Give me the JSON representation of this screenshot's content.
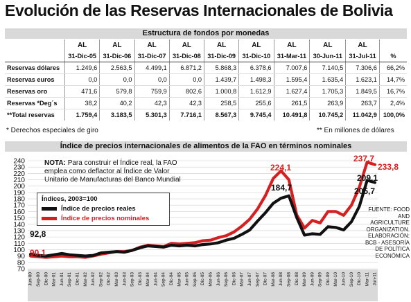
{
  "title": "Evolución de las Reservas Internacionales de Bolivia",
  "table": {
    "section_title": "Estructura de fondos por monedas",
    "header_top": [
      "AL",
      "AL",
      "AL",
      "AL",
      "AL",
      "AL",
      "AL",
      "AL",
      "AL"
    ],
    "header_dates": [
      "31-Dic-05",
      "31-Dic-06",
      "31-Dic-07",
      "31-Dic-08",
      "31-Dic-09",
      "31-Dic-10",
      "31-Mar-11",
      "30-Jun-11",
      "31-Jul-11",
      "%"
    ],
    "rows": [
      {
        "label": "Reservas dólares",
        "values": [
          "1.249,6",
          "2.563,5",
          "4.499,1",
          "6.871,2",
          "5.868,3",
          "6.378,6",
          "7.007,6",
          "7.140,5",
          "7.306,6",
          "66,2%"
        ]
      },
      {
        "label": "Reservas euros",
        "values": [
          "0,0",
          "0,0",
          "0,0",
          "0,0",
          "1.439,7",
          "1.498,3",
          "1.595,4",
          "1.635,4",
          "1.623,1",
          "14,7%"
        ]
      },
      {
        "label": "Reservas oro",
        "values": [
          "471,6",
          "579,8",
          "759,9",
          "802,6",
          "1.000,8",
          "1.612,9",
          "1.627,4",
          "1.705,3",
          "1.849,5",
          "16,7%"
        ]
      },
      {
        "label": "Reservas *Deg´s",
        "values": [
          "38,2",
          "40,2",
          "42,3",
          "42,3",
          "258,5",
          "255,6",
          "261,5",
          "263,9",
          "263,7",
          "2,4%"
        ]
      }
    ],
    "total": {
      "label": "**Total reservas",
      "values": [
        "1.759,4",
        "3.183,5",
        "5.301,3",
        "7.716,1",
        "8.567,3",
        "9.745,4",
        "10.491,8",
        "10.745,2",
        "11.042,9",
        "100,0%"
      ]
    },
    "footnote_left": "* Derechos especiales de giro",
    "footnote_right": "** En millones de dólares"
  },
  "chart_section_title": "Índice de precios internacionales de alimentos de la FAO en términos nominales",
  "note": {
    "lead": "NOTA:",
    "text": "Para construir el Índice real, la FAO emplea como deflactor al Índice de Valor Unitario de Manufacturas del Banco Mundial"
  },
  "legend": {
    "title": "Índices, 2003=100",
    "real": "Índice de precios reales",
    "nominal": "Índice de precios nominales"
  },
  "source": "FUENTE: FOOD AND AGRICULTURE ORGANIZATION. ELABORACIÓN: BCB - ASESORÍA DE POLÍTICA ECONÓMICA",
  "colors": {
    "real": "#111111",
    "nominal": "#d42020",
    "band": "#d9d9d9"
  },
  "chart_data": {
    "type": "line",
    "x": [
      "Jun-00",
      "Sep-00",
      "Dic-00",
      "Mar-01",
      "Jun-01",
      "Sep-01",
      "Dic-01",
      "Mar-02",
      "Jun-02",
      "Sep-02",
      "Dic-02",
      "Mar-03",
      "Jun-03",
      "Sep-03",
      "Dic-03",
      "Mar-04",
      "Jun-04",
      "Sep-04",
      "Dic-04",
      "Mar-05",
      "Jun-05",
      "Sep-05",
      "Dic-05",
      "Mar-06",
      "Jun-06",
      "Sep-06",
      "Dic-06",
      "Mar-07",
      "Jun-07",
      "Sep-07",
      "Dic-07",
      "Mar-08",
      "Jun-08",
      "Sep-08",
      "Dic-08",
      "Mar-09",
      "Jun-09",
      "Sep-09",
      "Dic-09",
      "Mar-10",
      "Jun-10",
      "Sep-10",
      "Dic-10",
      "Mar-11",
      "Jun-11"
    ],
    "series": [
      {
        "name": "Índice de precios reales",
        "values": [
          92.8,
          91,
          90,
          92,
          94,
          92,
          91,
          90,
          91,
          95,
          96,
          97,
          96,
          99,
          103,
          106,
          105,
          104,
          107,
          106,
          107,
          106,
          108,
          109,
          111,
          115,
          118,
          124,
          131,
          145,
          158,
          173,
          181,
          184.7,
          151,
          123,
          125,
          124,
          136,
          135,
          131,
          144,
          168,
          209.1,
          205.7
        ]
      },
      {
        "name": "Índice de precios nominales",
        "values": [
          90.1,
          89,
          88,
          89,
          90,
          89,
          89,
          88,
          90,
          93,
          95,
          97,
          97,
          99,
          104,
          107,
          106,
          105,
          110,
          109,
          110,
          111,
          114,
          115,
          119,
          122,
          128,
          137,
          148,
          164,
          185,
          212,
          224.1,
          210,
          155,
          134,
          146,
          142,
          160,
          160,
          154,
          170,
          198,
          237.7,
          233.8
        ]
      }
    ],
    "labels": [
      "92,8",
      "90,1",
      "224,1",
      "184,7",
      "237,7",
      "233,8",
      "209,1",
      "205,7"
    ],
    "yticks": [
      70,
      80,
      90,
      100,
      110,
      120,
      130,
      140,
      150,
      160,
      170,
      180,
      190,
      200,
      210,
      220,
      230,
      240
    ],
    "ylim": [
      70,
      240
    ],
    "grid": true
  }
}
